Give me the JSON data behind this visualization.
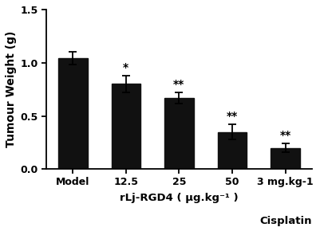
{
  "categories": [
    "Model",
    "12.5",
    "25",
    "50",
    "3 mg.kg-1"
  ],
  "values": [
    1.04,
    0.8,
    0.67,
    0.35,
    0.2
  ],
  "errors": [
    0.06,
    0.075,
    0.05,
    0.07,
    0.04
  ],
  "significance": [
    "",
    "*",
    "**",
    "**",
    "**"
  ],
  "bar_color": "#111111",
  "ylabel": "Tumour Weight (g)",
  "xlabel_main": "rLj-RGD4 ( μg.kg⁻¹ )",
  "xlabel_right": "Cisplatin",
  "ylim": [
    0.0,
    1.5
  ],
  "yticks": [
    0.0,
    0.5,
    1.0,
    1.5
  ],
  "bar_width": 0.55,
  "figsize": [
    4.02,
    2.95
  ],
  "dpi": 100,
  "sig_fontsize": 10,
  "ylabel_fontsize": 10,
  "tick_fontsize": 9,
  "xlabel_fontsize": 9.5,
  "font_weight": "bold"
}
